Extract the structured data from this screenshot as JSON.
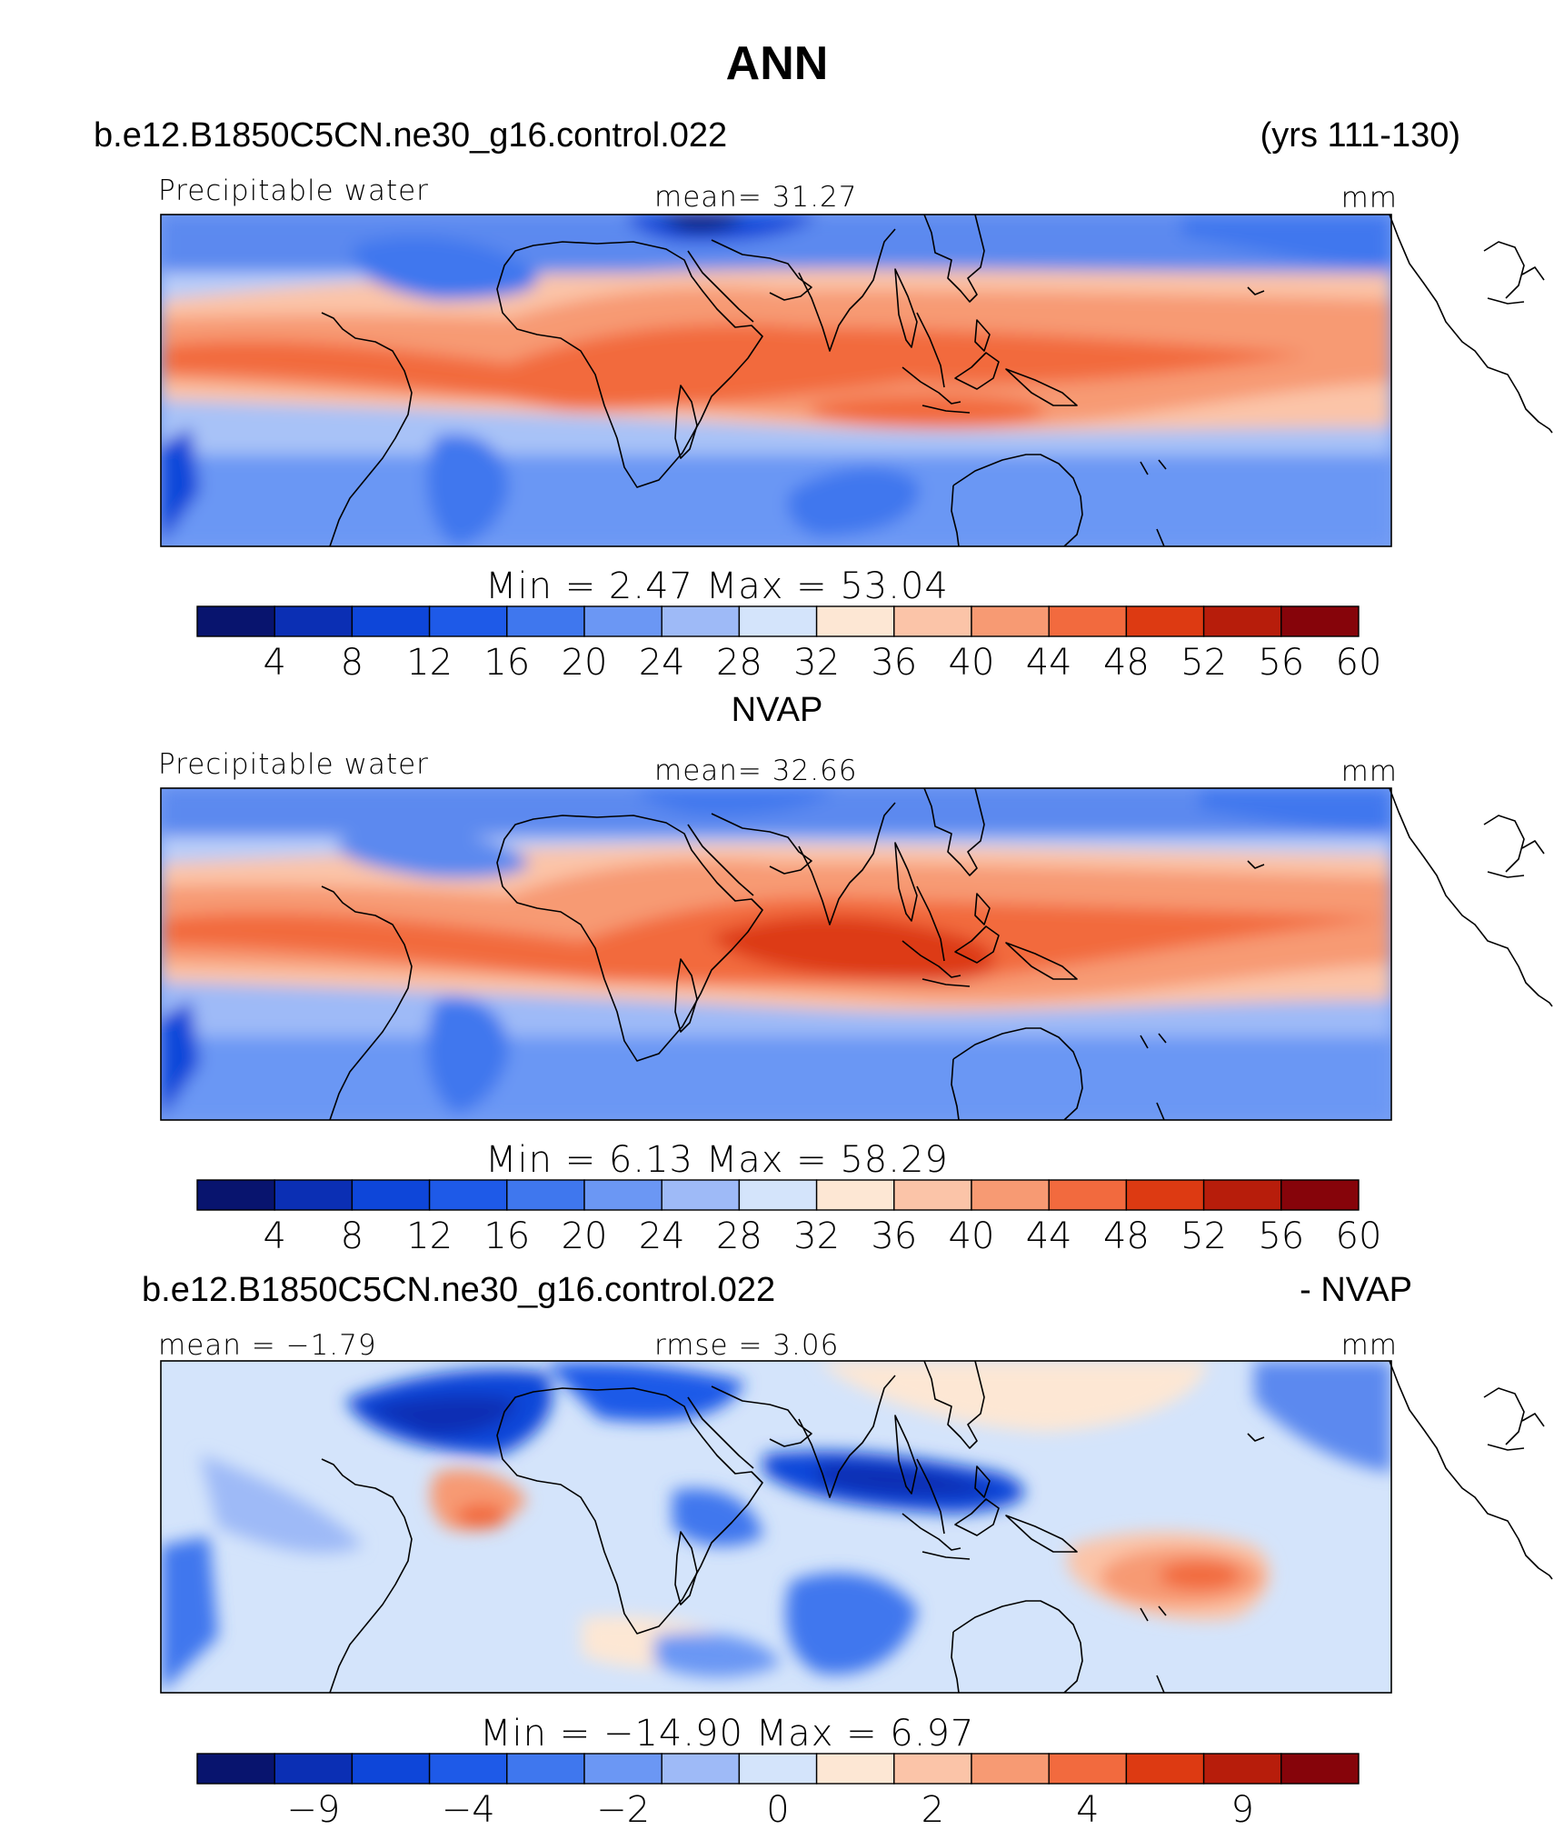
{
  "figure": {
    "title": "ANN"
  },
  "panels": [
    {
      "case_left": "b.e12.B1850C5CN.ne30_g16.control.022",
      "case_right": "(yrs 111-130)",
      "subtitle_left": "Precipitable water",
      "subtitle_center": "mean=   31.27",
      "units": "mm",
      "min_max": "Min  =     2.47  Max  =    53.04",
      "colorbar": {
        "ticks": [
          "4",
          "8",
          "12",
          "16",
          "20",
          "24",
          "28",
          "32",
          "36",
          "40",
          "44",
          "48",
          "52",
          "56",
          "60"
        ],
        "colors": [
          "#08146e",
          "#0b2fb4",
          "#0e46d9",
          "#1e5ae8",
          "#3f77ee",
          "#6b97f4",
          "#9ebaf7",
          "#d4e4fb",
          "#fde7d4",
          "#fbc4a8",
          "#f79a73",
          "#f26a3e",
          "#dd3a12",
          "#b71d0b",
          "#86040a"
        ]
      }
    },
    {
      "case_center": "NVAP",
      "subtitle_left": "Precipitable water",
      "subtitle_center": "mean=   32.66",
      "units": "mm",
      "min_max": "Min  =     6.13  Max  =    58.29",
      "colorbar": {
        "ticks": [
          "4",
          "8",
          "12",
          "16",
          "20",
          "24",
          "28",
          "32",
          "36",
          "40",
          "44",
          "48",
          "52",
          "56",
          "60"
        ],
        "colors": [
          "#08146e",
          "#0b2fb4",
          "#0e46d9",
          "#1e5ae8",
          "#3f77ee",
          "#6b97f4",
          "#9ebaf7",
          "#d4e4fb",
          "#fde7d4",
          "#fbc4a8",
          "#f79a73",
          "#f26a3e",
          "#dd3a12",
          "#b71d0b",
          "#86040a"
        ]
      }
    },
    {
      "case_left": "b.e12.B1850C5CN.ne30_g16.control.022",
      "case_right": "- NVAP",
      "subtitle_left": "mean  =   −1.79",
      "subtitle_center": "rmse  =     3.06",
      "units": "mm",
      "min_max": "Min  =  −14.90  Max  =      6.97",
      "colorbar": {
        "ticks": [
          "−9",
          "−4",
          "−2",
          "0",
          "2",
          "4",
          "9"
        ],
        "colors": [
          "#08146e",
          "#0b2fb4",
          "#0e46d9",
          "#1e5ae8",
          "#3f77ee",
          "#6b97f4",
          "#9ebaf7",
          "#d4e4fb",
          "#fde7d4",
          "#fbc4a8",
          "#f79a73",
          "#f26a3e",
          "#dd3a12",
          "#b71d0b",
          "#86040a"
        ]
      }
    }
  ]
}
